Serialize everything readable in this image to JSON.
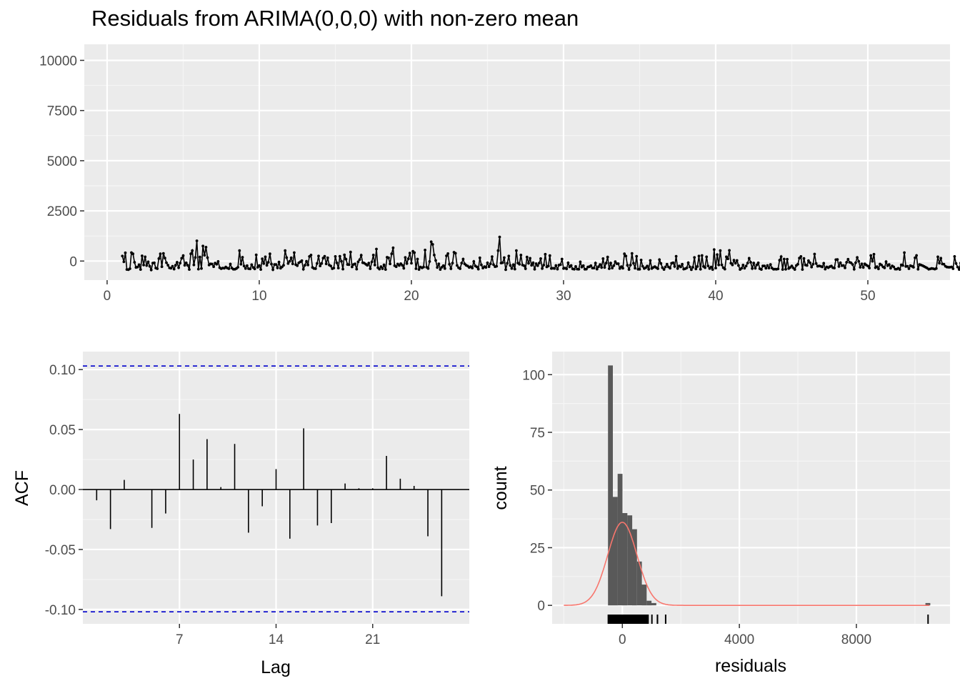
{
  "chart_data": [
    {
      "id": "residual-series",
      "type": "line",
      "title": "Residuals from ARIMA(0,0,0) with non-zero mean",
      "xlabel": "",
      "ylabel": "",
      "xlim": [
        -1.5,
        55.4
      ],
      "ylim": [
        -950,
        10800
      ],
      "x_ticks": [
        0,
        10,
        20,
        30,
        40,
        50
      ],
      "y_ticks": [
        0,
        2500,
        5000,
        7500,
        10000
      ],
      "x_tick_labels": [
        "0",
        "10",
        "20",
        "30",
        "40",
        "50"
      ],
      "y_tick_labels": [
        "0",
        "2500",
        "5000",
        "7500",
        "10000"
      ],
      "grid": true,
      "x_start": 1,
      "x_step": 0.1,
      "values": [
        250,
        -40,
        410,
        -420,
        -430,
        -380,
        420,
        360,
        -60,
        -320,
        -300,
        -180,
        -420,
        260,
        -200,
        210,
        -220,
        -40,
        -260,
        -440,
        -100,
        -90,
        -350,
        -380,
        120,
        360,
        -280,
        380,
        150,
        -80,
        -210,
        -340,
        -360,
        -260,
        -400,
        -210,
        -60,
        -330,
        -100,
        140,
        270,
        -210,
        -90,
        -210,
        -420,
        360,
        520,
        -190,
        180,
        1010,
        -400,
        200,
        -370,
        750,
        290,
        690,
        170,
        -200,
        -140,
        -150,
        -280,
        -100,
        -160,
        -20,
        -330,
        -380,
        -350,
        -360,
        -300,
        -350,
        -380,
        -150,
        -350,
        -410,
        -410,
        -370,
        -310,
        520,
        -160,
        190,
        -250,
        -370,
        -230,
        -380,
        -390,
        -180,
        -320,
        -390,
        310,
        -310,
        -220,
        -420,
        110,
        -120,
        210,
        -210,
        -60,
        360,
        -150,
        -430,
        -170,
        -170,
        -340,
        -50,
        -360,
        -290,
        -210,
        520,
        170,
        -120,
        -10,
        160,
        -140,
        420,
        -180,
        -230,
        -90,
        -40,
        20,
        -410,
        -210,
        -10,
        -190,
        230,
        300,
        -320,
        -370,
        -380,
        -120,
        250,
        -240,
        -120,
        150,
        240,
        -140,
        160,
        -200,
        -250,
        -380,
        -350,
        230,
        -90,
        -350,
        240,
        -10,
        -400,
        310,
        90,
        -170,
        -180,
        450,
        -290,
        -170,
        -140,
        -400,
        -40,
        70,
        290,
        -80,
        -100,
        -160,
        -210,
        -100,
        -380,
        -40,
        300,
        -200,
        600,
        -330,
        -400,
        -280,
        -380,
        -190,
        -420,
        190,
        160,
        -140,
        360,
        660,
        -230,
        -280,
        -150,
        -220,
        -130,
        -210,
        -360,
        180,
        -120,
        110,
        400,
        -110,
        490,
        420,
        -380,
        100,
        -420,
        -300,
        -340,
        -300,
        550,
        -310,
        -370,
        -20,
        960,
        830,
        300,
        30,
        -320,
        -140,
        -420,
        -310,
        -230,
        -370,
        260,
        370,
        -160,
        -380,
        -100,
        440,
        390,
        -220,
        -330,
        -380,
        -100,
        100,
        -140,
        -210,
        -250,
        -320,
        -280,
        -350,
        -20,
        -240,
        -290,
        -400,
        160,
        -190,
        -350,
        -280,
        -320,
        -90,
        -280,
        -140,
        220,
        -180,
        -280,
        -260,
        520,
        1200,
        -100,
        -80,
        170,
        -430,
        -110,
        250,
        -220,
        -370,
        -180,
        -400,
        520,
        -100,
        -160,
        300,
        -200,
        -230,
        -380,
        200,
        -110,
        140,
        -210,
        -80,
        -410,
        -130,
        -230,
        -100,
        120,
        -370,
        -200,
        340,
        -290,
        -250,
        270,
        -370,
        -360,
        -370,
        -220,
        -400,
        -200,
        -180,
        100,
        -370,
        -350,
        -390,
        -90,
        -290,
        -220,
        -390,
        -410,
        -270,
        -400,
        -410,
        -40,
        -300,
        -230,
        -410,
        -400,
        -300,
        -280,
        -230,
        -350,
        -350,
        -100,
        -400,
        -280,
        -170,
        -320,
        120,
        -320,
        -100,
        200,
        -380,
        -100,
        -350,
        -230,
        -30,
        -130,
        -130,
        -370,
        -280,
        -360,
        360,
        250,
        -210,
        -420,
        -200,
        380,
        -110,
        -360,
        240,
        -410,
        -410,
        50,
        -260,
        -370,
        -330,
        -250,
        -410,
        30,
        -370,
        -320,
        -280,
        -330,
        -380,
        70,
        -120,
        -330,
        -420,
        -290,
        -160,
        -290,
        -360,
        -110,
        -80,
        -270,
        240,
        -370,
        -240,
        -290,
        -160,
        -400,
        -380,
        -340,
        -80,
        -290,
        -430,
        -310,
        180,
        -390,
        -270,
        250,
        -410,
        280,
        -270,
        -330,
        210,
        -240,
        -370,
        -300,
        -420,
        570,
        -350,
        320,
        -190,
        520,
        -190,
        -330,
        -400,
        210,
        110,
        530,
        -110,
        -190,
        40,
        -110,
        30,
        -220,
        -420,
        -360,
        -200,
        -360,
        -250,
        -100,
        140,
        -60,
        -370,
        -100,
        -360,
        -190,
        -90,
        -380,
        -420,
        -240,
        -240,
        -360,
        -220,
        -350,
        -170,
        -350,
        -410,
        -400,
        -410,
        -390,
        40,
        220,
        -420,
        100,
        -410,
        90,
        -370,
        -320,
        -240,
        -340,
        -420,
        -220,
        -160,
        150,
        230,
        -420,
        130,
        -200,
        -220,
        20,
        -80,
        -300,
        -160,
        350,
        -120,
        -260,
        -240,
        -260,
        -290,
        -110,
        -400,
        -290,
        -330,
        -280,
        -250,
        -330,
        -350,
        70,
        80,
        -270,
        -80,
        -230,
        -220,
        -340,
        -60,
        90,
        -60,
        -90,
        -170,
        -410,
        -80,
        180,
        -10,
        -310,
        -140,
        -320,
        -140,
        -200,
        -250,
        -350,
        280,
        -10,
        340,
        -330,
        -280,
        -390,
        -150,
        -200,
        -290,
        -340,
        -30,
        -230,
        -170,
        -360,
        -240,
        -290,
        -400,
        -400,
        -360,
        -420,
        -190,
        -220,
        420,
        -270,
        -260,
        -380,
        -230,
        -260,
        -310,
        160,
        280,
        -410,
        -170,
        -200,
        -230,
        -270,
        -310,
        -350,
        -410,
        -390,
        -370,
        -380,
        -400,
        -370,
        210,
        -100,
        140,
        -150,
        -160,
        -260,
        -300,
        -310,
        -310,
        -290,
        -380,
        230,
        -120,
        -300,
        -420,
        -100,
        -90,
        1010,
        -210,
        -120,
        -270,
        -270,
        -270,
        -250,
        -250,
        -390,
        -170,
        -310,
        -230,
        -160,
        -140,
        -160,
        10450,
        6700,
        -300,
        -300,
        -370,
        -270,
        -230,
        -40,
        170,
        -340,
        380,
        -50,
        -180,
        -330,
        -360,
        -290,
        -150,
        -410,
        -240,
        -110,
        -30,
        440,
        -140,
        -260,
        500,
        -120,
        -250,
        -370,
        -120,
        -110,
        -290,
        880,
        -350,
        -200,
        -300,
        -430,
        -410,
        -100,
        -200,
        50,
        130,
        570,
        -210,
        -290,
        -30,
        170,
        -260,
        -110,
        -110,
        380,
        120,
        -260,
        -290,
        -350,
        -430,
        -330,
        -230,
        -420,
        -350,
        -310,
        270,
        -210,
        -410,
        -270,
        -270,
        -360,
        -250,
        -160,
        -380,
        -420,
        -290,
        -370,
        -260,
        -130,
        -280,
        -400,
        -180,
        -350,
        220,
        -100,
        -100,
        -380,
        -420,
        -200,
        -380,
        -380,
        -360,
        -260,
        -350,
        -380,
        -350,
        -410,
        -180,
        -370,
        -300,
        330,
        -320,
        120,
        -30,
        -180,
        -420,
        230,
        -320,
        -130,
        70,
        -350,
        -290,
        270,
        -290,
        -200,
        -380,
        160,
        -360,
        210,
        -270,
        -280,
        -410,
        -300,
        -320,
        -110,
        -270,
        -260,
        -200,
        -130,
        330,
        -120,
        -310,
        -330,
        -240,
        -200,
        -120,
        -290,
        -350,
        230,
        -160,
        -360,
        -390,
        -260,
        -130,
        -200,
        -110,
        -310,
        -60,
        -170,
        90,
        -260,
        -280,
        -430,
        -250,
        -230,
        -240,
        -70,
        -130,
        -330,
        -290,
        -200,
        -280,
        -320,
        90,
        -320,
        -370,
        -230,
        -160,
        -140,
        -240,
        -210,
        -260,
        -170,
        -330,
        -340,
        -260,
        -370,
        -70,
        -180,
        -260,
        -400,
        -380,
        -20,
        -270,
        -330,
        -430,
        -240,
        -260,
        -360,
        -420,
        -360,
        -160,
        -220,
        -270,
        -360,
        -300,
        -350,
        -180,
        -200,
        -210,
        -360,
        -170,
        -130,
        -240,
        -150,
        -160,
        -300,
        -280,
        -310,
        -330,
        -100,
        -60
      ]
    },
    {
      "id": "acf",
      "type": "bar",
      "xlabel": "Lag",
      "ylabel": "ACF",
      "xlim": [
        0,
        28
      ],
      "ylim": [
        -0.112,
        0.115
      ],
      "x_ticks": [
        7,
        14,
        21
      ],
      "x_tick_labels": [
        "7",
        "14",
        "21"
      ],
      "y_ticks": [
        -0.1,
        -0.05,
        0.0,
        0.05,
        0.1
      ],
      "y_tick_labels": [
        "-0.10",
        "-0.05",
        "0.00",
        "0.05",
        "0.10"
      ],
      "lags": [
        1,
        2,
        3,
        4,
        5,
        6,
        7,
        8,
        9,
        10,
        11,
        12,
        13,
        14,
        15,
        16,
        17,
        18,
        19,
        20,
        21,
        22,
        23,
        24,
        25,
        26
      ],
      "values": [
        -0.009,
        -0.033,
        0.008,
        0.0,
        -0.032,
        -0.02,
        0.063,
        0.025,
        0.042,
        0.002,
        0.038,
        -0.036,
        -0.014,
        0.017,
        -0.041,
        0.051,
        -0.03,
        -0.028,
        0.005,
        0.001,
        0.001,
        0.028,
        0.009,
        0.003,
        -0.039,
        -0.089
      ],
      "ci_bounds": [
        -0.102,
        0.103
      ],
      "ci_color": "#0000cc",
      "grid": true
    },
    {
      "id": "residual-histogram",
      "type": "bar",
      "xlabel": "residuals",
      "ylabel": "count",
      "xlim": [
        -2400,
        11200
      ],
      "ylim": [
        -8,
        110
      ],
      "x_ticks": [
        0,
        4000,
        8000
      ],
      "x_tick_labels": [
        "0",
        "4000",
        "8000"
      ],
      "y_ticks": [
        0,
        25,
        50,
        75,
        100
      ],
      "y_tick_labels": [
        "0",
        "25",
        "50",
        "75",
        "100"
      ],
      "bin_width": 165,
      "bins": [
        {
          "x0": -490,
          "count": 104
        },
        {
          "x0": -325,
          "count": 47
        },
        {
          "x0": -160,
          "count": 57
        },
        {
          "x0": 5,
          "count": 40
        },
        {
          "x0": 170,
          "count": 39
        },
        {
          "x0": 335,
          "count": 33
        },
        {
          "x0": 500,
          "count": 19
        },
        {
          "x0": 665,
          "count": 9
        },
        {
          "x0": 830,
          "count": 2
        },
        {
          "x0": 995,
          "count": 1
        },
        {
          "x0": 10360,
          "count": 1
        }
      ],
      "bar_color": "#595959",
      "density_curve": {
        "mean": 0,
        "sd": 500,
        "peak_count": 36,
        "color": "#f8766d"
      },
      "rug": [
        -480,
        -460,
        -440,
        -420,
        -400,
        -380,
        -360,
        -340,
        -320,
        -300,
        -280,
        -260,
        -240,
        -220,
        -200,
        -180,
        -160,
        -140,
        -120,
        -100,
        -80,
        -60,
        -40,
        -20,
        0,
        20,
        40,
        60,
        80,
        100,
        120,
        140,
        160,
        180,
        200,
        220,
        240,
        260,
        280,
        300,
        320,
        340,
        360,
        380,
        400,
        420,
        440,
        460,
        480,
        500,
        520,
        540,
        560,
        580,
        600,
        620,
        640,
        660,
        680,
        700,
        720,
        740,
        760,
        780,
        800,
        820,
        840,
        860,
        880,
        1010,
        1200,
        1480,
        1200,
        10450
      ],
      "grid": true
    }
  ]
}
